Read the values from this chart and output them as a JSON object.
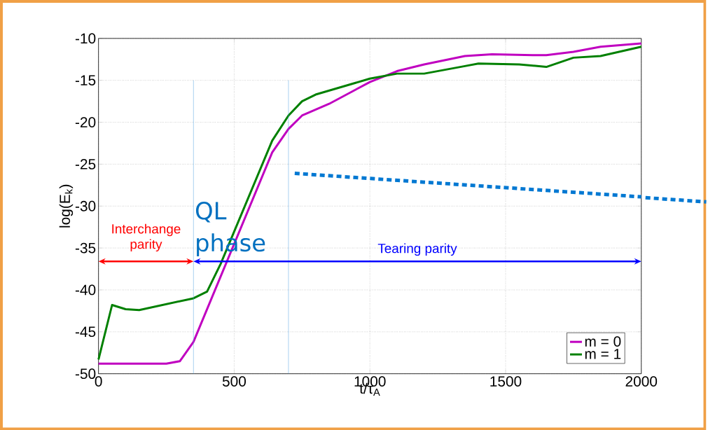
{
  "chart_data": {
    "type": "line",
    "xlabel": "t/τ$_{A}$",
    "ylabel": "log(E$_{k}$)",
    "xlim": [
      0,
      2000
    ],
    "ylim": [
      -50,
      -10
    ],
    "xticks": [
      0,
      500,
      1000,
      1500,
      2000
    ],
    "yticks": [
      -50,
      -45,
      -40,
      -35,
      -30,
      -25,
      -20,
      -15,
      -10
    ],
    "grid": true,
    "legend": "bottom right",
    "series": [
      {
        "name": "m = 0",
        "color": "#c000c0",
        "x": [
          0,
          250,
          300,
          350,
          640,
          700,
          750,
          850,
          1000,
          1100,
          1200,
          1350,
          1450,
          1600,
          1650,
          1750,
          1850,
          2000
        ],
        "values": [
          -48.8,
          -48.8,
          -48.5,
          -46.2,
          -23.6,
          -20.8,
          -19.2,
          -17.8,
          -15.2,
          -13.9,
          -13.1,
          -12.1,
          -11.9,
          -12.0,
          -12.0,
          -11.6,
          -11.0,
          -10.6
        ]
      },
      {
        "name": "m = 1",
        "color": "#008000",
        "x": [
          0,
          50,
          100,
          150,
          350,
          400,
          450,
          640,
          700,
          750,
          800,
          1000,
          1100,
          1200,
          1350,
          1400,
          1550,
          1650,
          1750,
          1850,
          2000
        ],
        "values": [
          -48.3,
          -41.8,
          -42.3,
          -42.4,
          -41.0,
          -40.2,
          -36.9,
          -22.2,
          -19.2,
          -17.5,
          -16.7,
          -14.8,
          -14.2,
          -14.2,
          -13.3,
          -13.0,
          -13.1,
          -13.4,
          -12.3,
          -12.1,
          -11.0
        ]
      },
      {
        "color": "#0078d2",
        "line_style": "dotted",
        "x": [
          723,
          2000
        ],
        "values": [
          -26.1,
          -28.9
        ]
      }
    ],
    "ref_lines": [
      {
        "axis": "x",
        "value": 350,
        "color": "#4ea0e0"
      },
      {
        "axis": "x",
        "value": 700,
        "color": "#4ea0e0"
      },
      {
        "axis": "y",
        "value": -36.6,
        "label": "Tearing parity",
        "color": "#0000ff"
      }
    ],
    "annotations": [
      "Interchange parity",
      "QL phase"
    ]
  }
}
